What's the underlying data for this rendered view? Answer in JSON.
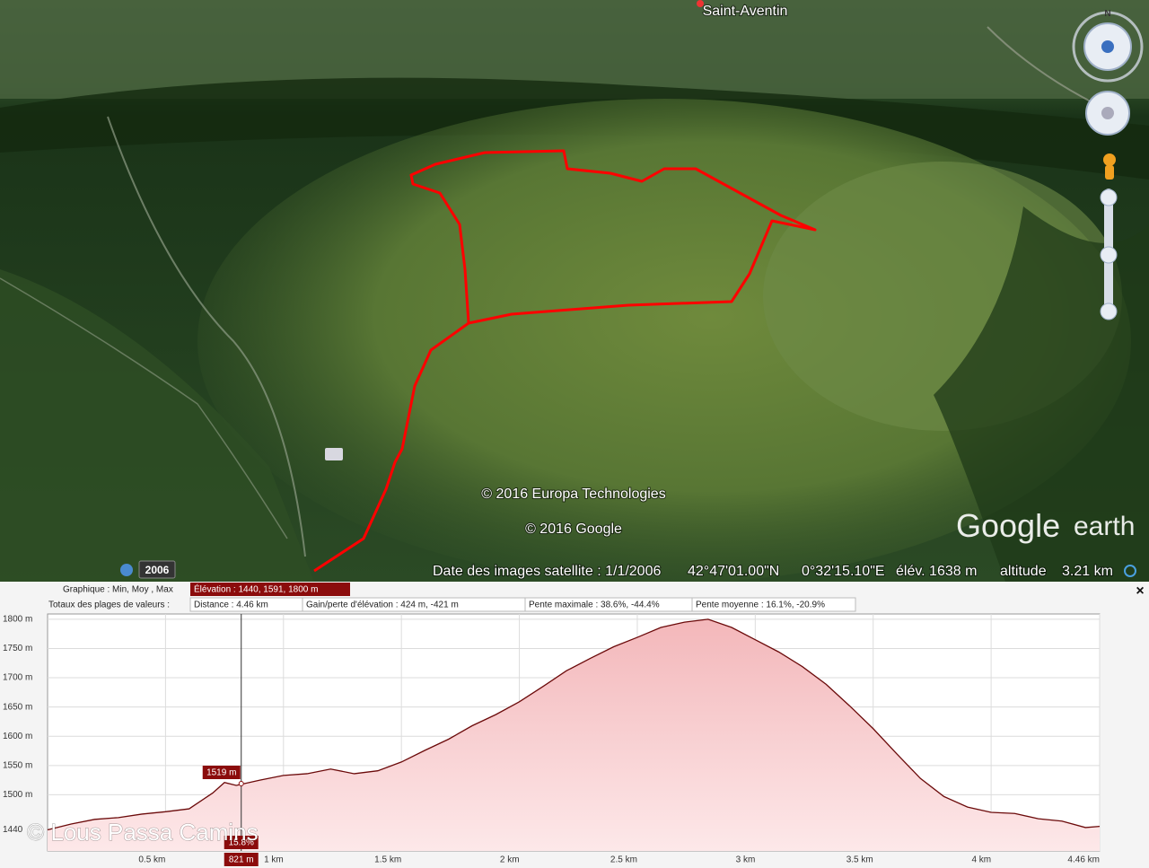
{
  "map": {
    "place_label": "Saint-Aventin",
    "compass": "N",
    "copyright_1": "© 2016 Europa Technologies",
    "copyright_2": "© 2016 Google",
    "logo_1": "Google",
    "logo_2": "earth",
    "history_year": "2006",
    "status": {
      "imagery_date": "Date des images satellite : 1/1/2006",
      "latitude": "42°47'01.00\"N",
      "longitude": "0°32'15.10\"E",
      "elevation": "élév. 1638 m",
      "altitude_label": "altitude",
      "altitude_value": "3.21 km"
    }
  },
  "profile_panel": {
    "graph_label": "Graphique : Min, Moy , Max",
    "elevation_stats": "Élévation : 1440, 1591, 1800 m",
    "totals_label": "Totaux des plages de valeurs :",
    "distance": "Distance : 4.46 km",
    "gain_loss": "Gain/perte d'élévation : 424 m, -421 m",
    "max_slope": "Pente maximale : 38.6%, -44.4%",
    "avg_slope": "Pente moyenne : 16.1%, -20.9%",
    "close": "×"
  },
  "watermark": "© Lous Passa Camins",
  "chart_data": {
    "type": "area",
    "x": [
      0,
      0.1,
      0.2,
      0.3,
      0.4,
      0.5,
      0.6,
      0.7,
      0.75,
      0.8,
      0.9,
      1.0,
      1.1,
      1.2,
      1.3,
      1.4,
      1.5,
      1.6,
      1.7,
      1.8,
      1.9,
      2.0,
      2.1,
      2.2,
      2.3,
      2.4,
      2.5,
      2.6,
      2.7,
      2.8,
      2.9,
      3.0,
      3.1,
      3.2,
      3.3,
      3.4,
      3.5,
      3.6,
      3.7,
      3.8,
      3.9,
      4.0,
      4.1,
      4.2,
      4.3,
      4.4,
      4.46
    ],
    "series": [
      {
        "name": "Élévation",
        "color": "#6b0a0a",
        "values": [
          1440,
          1450,
          1458,
          1461,
          1467,
          1471,
          1476,
          1503,
          1521,
          1516,
          1525,
          1533,
          1536,
          1544,
          1536,
          1541,
          1556,
          1576,
          1595,
          1618,
          1637,
          1659,
          1685,
          1712,
          1733,
          1753,
          1769,
          1786,
          1795,
          1800,
          1786,
          1765,
          1744,
          1719,
          1689,
          1652,
          1613,
          1570,
          1528,
          1497,
          1479,
          1470,
          1468,
          1459,
          1455,
          1444,
          1446
        ]
      }
    ],
    "fill_color": "#f6c6c8",
    "xlim": [
      0,
      4.46
    ],
    "xticks": [
      {
        "value": 0.5,
        "label": "0.5 km"
      },
      {
        "value": 1,
        "label": "1 km"
      },
      {
        "value": 1.5,
        "label": "1.5 km"
      },
      {
        "value": 2,
        "label": "2 km"
      },
      {
        "value": 2.5,
        "label": "2.5 km"
      },
      {
        "value": 3,
        "label": "3 km"
      },
      {
        "value": 3.5,
        "label": "3.5 km"
      },
      {
        "value": 4,
        "label": "4 km"
      },
      {
        "value": 4.46,
        "label": "4.46 km"
      }
    ],
    "ylim": [
      1404,
      1809
    ],
    "yticks": [
      1440,
      {
        "value": 1500,
        "label": "1500 m"
      },
      {
        "value": 1550,
        "label": "1550 m"
      },
      {
        "value": 1600,
        "label": "1600 m"
      },
      {
        "value": 1650,
        "label": "1650 m"
      },
      {
        "value": 1700,
        "label": "1700 m"
      },
      {
        "value": 1750,
        "label": "1750 m"
      },
      {
        "value": 1800,
        "label": "1800 m"
      }
    ],
    "grid": true,
    "cursor": {
      "x": 0.821,
      "x_label": "821 m",
      "value": 1519,
      "value_label": "1519 m",
      "slope_label": "15.8%"
    }
  }
}
